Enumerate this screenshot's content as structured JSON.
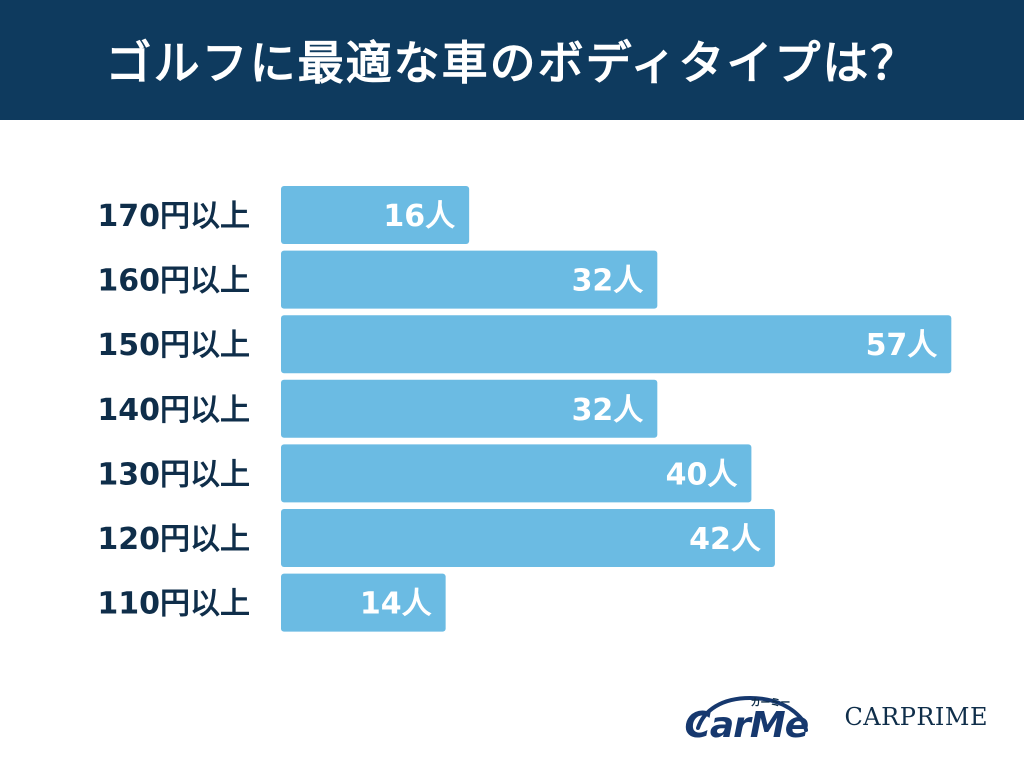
{
  "header": {
    "title": "ゴルフに最適な車のボディタイプは？"
  },
  "chart_data": {
    "type": "bar",
    "orientation": "horizontal",
    "title": "ゴルフに最適な車のボディタイプは？",
    "categories": [
      "170円以上",
      "160円以上",
      "150円以上",
      "140円以上",
      "130円以上",
      "120円以上",
      "110円以上"
    ],
    "values": [
      16,
      32,
      57,
      32,
      40,
      42,
      14
    ],
    "value_labels": [
      "16人",
      "32人",
      "57人",
      "32人",
      "40人",
      "42人",
      "14人"
    ],
    "unit": "人",
    "bar_color": "#6bbbe3",
    "grid": false,
    "legend": "none"
  },
  "logos": {
    "carme_kana": "カーミー",
    "carme_word": "CarMe",
    "carprime": "CARPRIME"
  },
  "colors": {
    "header_bg": "#0e3a5e",
    "label_text": "#0f2e4a",
    "bar": "#6bbbe3"
  }
}
